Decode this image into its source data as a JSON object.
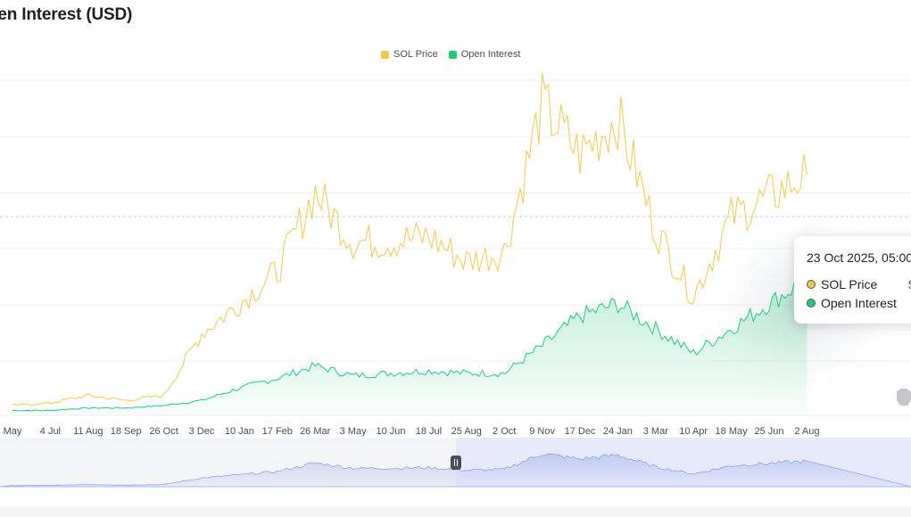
{
  "header": {
    "title": "pen Interest (USD)"
  },
  "legend": [
    {
      "label": "SOL Price",
      "color": "#f0c94e"
    },
    {
      "label": "Open Interest",
      "color": "#21c97a"
    }
  ],
  "tooltip": {
    "date": "23 Oct 2025, 05:00",
    "rows": [
      {
        "label": "SOL Price",
        "value": "$",
        "color": "#f0c94e"
      },
      {
        "label": "Open Interest",
        "value": "",
        "color": "#21c97a"
      }
    ]
  },
  "chart_data": {
    "type": "line",
    "title": "pen Interest (USD)",
    "categories": [
      "May",
      "4 Jul",
      "11 Aug",
      "18 Sep",
      "26 Oct",
      "3 Dec",
      "10 Jan",
      "17 Feb",
      "26 Mar",
      "3 May",
      "10 Jun",
      "18 Jul",
      "25 Aug",
      "2 Oct",
      "9 Nov",
      "17 Dec",
      "24 Jan",
      "3 Mar",
      "10 Apr",
      "18 May",
      "25 Jun",
      "2 Aug"
    ],
    "series": [
      {
        "name": "SOL Price",
        "color": "#f0c94e",
        "values": [
          4,
          5,
          8,
          6,
          8,
          33,
          45,
          58,
          90,
          70,
          70,
          72,
          62,
          66,
          125,
          105,
          120,
          75,
          48,
          80,
          88,
          97
        ]
      },
      {
        "name": "Open Interest",
        "color": "#21c97a",
        "values": [
          2,
          2,
          3,
          3,
          4,
          6,
          11,
          15,
          20,
          16,
          17,
          18,
          17,
          17,
          28,
          40,
          45,
          35,
          25,
          35,
          45,
          55
        ]
      }
    ],
    "grid": true,
    "legend_position": "top",
    "navigator": true
  }
}
